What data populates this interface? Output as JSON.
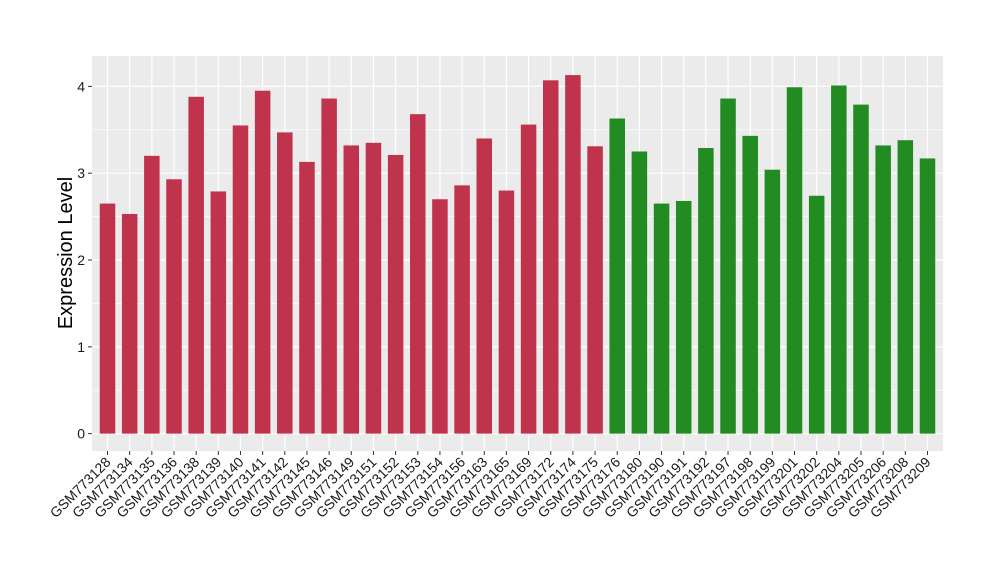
{
  "chart_data": {
    "type": "bar",
    "title": "",
    "xlabel": "",
    "ylabel": "Expression Level",
    "ylim": [
      -0.2,
      4.35
    ],
    "yticks": [
      0,
      1,
      2,
      3,
      4
    ],
    "grid": true,
    "legend": "none",
    "background": "#ebebeb",
    "gridline_color": "#ffffff",
    "series": [
      {
        "color": "#c0334d",
        "categories": [
          "GSM773128",
          "GSM773134",
          "GSM773135",
          "GSM773136",
          "GSM773138",
          "GSM773139",
          "GSM773140",
          "GSM773141",
          "GSM773142",
          "GSM773145",
          "GSM773146",
          "GSM773149",
          "GSM773151",
          "GSM773152",
          "GSM773153",
          "GSM773154",
          "GSM773156",
          "GSM773163",
          "GSM773165",
          "GSM773169",
          "GSM773172",
          "GSM773174",
          "GSM773175"
        ],
        "values": [
          2.65,
          2.53,
          3.2,
          2.93,
          3.88,
          2.79,
          3.55,
          3.95,
          3.47,
          3.13,
          3.86,
          3.32,
          3.35,
          3.21,
          3.68,
          2.7,
          2.86,
          3.4,
          2.8,
          3.56,
          4.07,
          4.13,
          3.31
        ]
      },
      {
        "color": "#228b22",
        "categories": [
          "GSM773176",
          "GSM773180",
          "GSM773190",
          "GSM773191",
          "GSM773192",
          "GSM773197",
          "GSM773198",
          "GSM773199",
          "GSM773201",
          "GSM773202",
          "GSM773204",
          "GSM773205",
          "GSM773206",
          "GSM773208",
          "GSM773209"
        ],
        "values": [
          3.63,
          3.25,
          2.65,
          2.68,
          3.29,
          3.86,
          3.43,
          3.04,
          3.99,
          2.74,
          4.01,
          3.79,
          3.32,
          3.38,
          3.17
        ]
      }
    ]
  }
}
